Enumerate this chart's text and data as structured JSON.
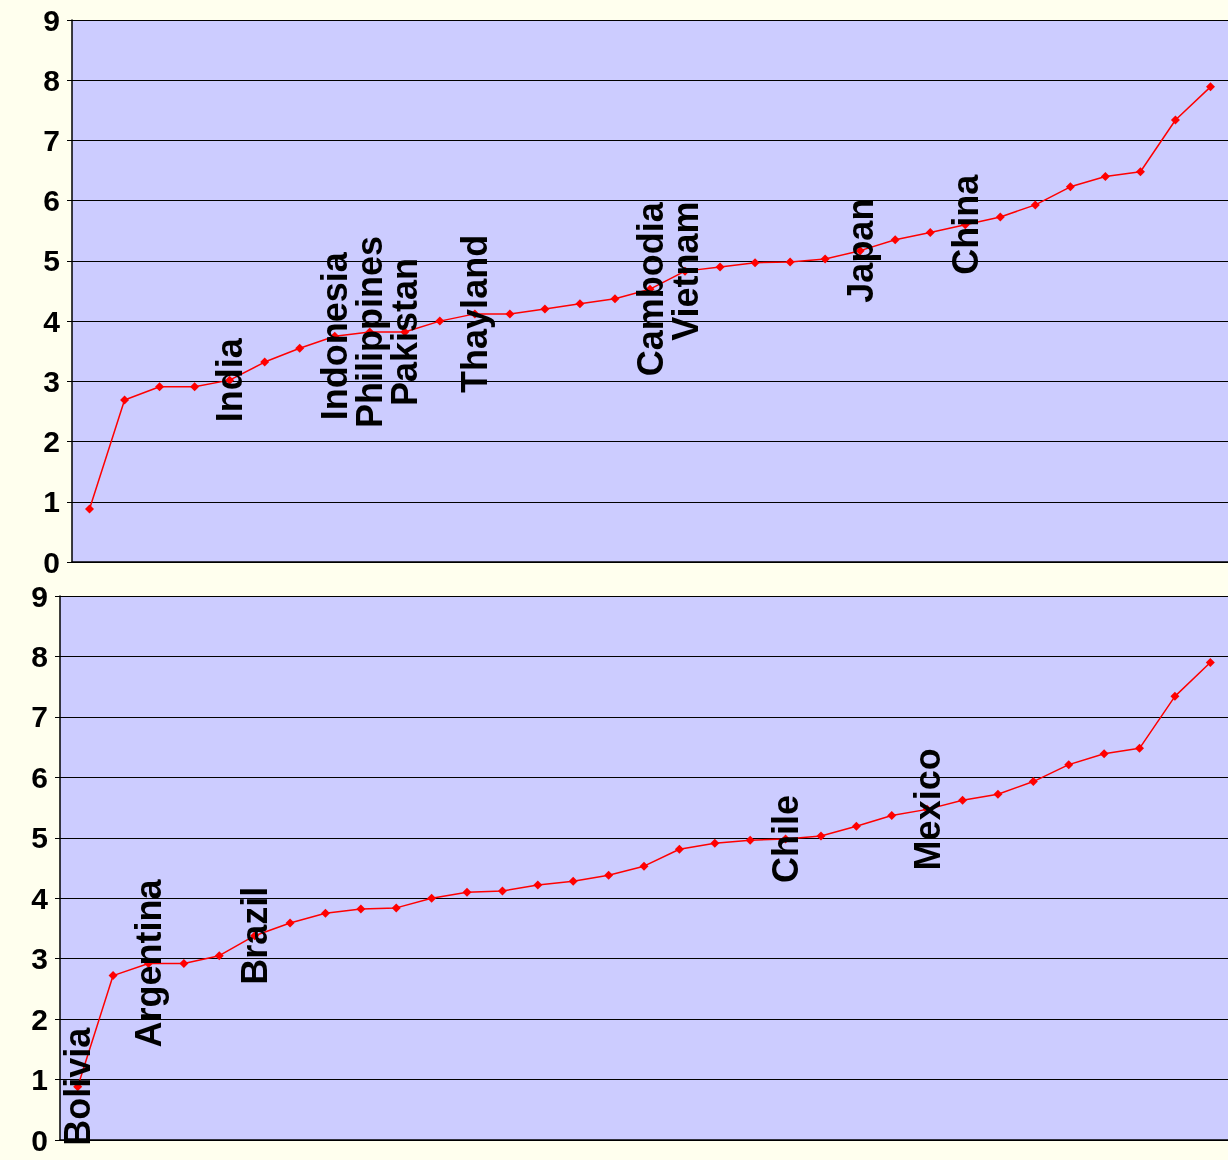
{
  "chart_data": [
    {
      "type": "line",
      "categories": [
        null,
        null,
        null,
        null,
        null,
        null,
        null,
        null,
        null,
        null,
        null,
        null,
        null,
        null,
        null,
        null,
        null,
        null,
        null,
        null,
        null,
        null,
        null,
        null,
        null,
        null,
        null,
        null,
        null,
        null,
        null,
        null,
        null
      ],
      "series": [
        {
          "color": "#ff0000",
          "values": [
            0.88,
            2.69,
            2.91,
            2.91,
            3.02,
            3.32,
            3.55,
            3.75,
            3.82,
            3.82,
            4.0,
            4.12,
            4.12,
            4.2,
            4.29,
            4.37,
            4.53,
            4.83,
            4.9,
            4.97,
            4.98,
            5.03,
            5.17,
            5.35,
            5.47,
            5.6,
            5.73,
            5.93,
            6.23,
            6.4,
            6.48,
            7.34,
            7.89
          ],
          "value_labels": [
            null,
            null,
            null,
            null,
            "India",
            null,
            null,
            "Indonesia",
            "Philippines",
            "Pakistan",
            null,
            "Thayland",
            null,
            null,
            null,
            null,
            "Cambodia",
            "Vietnam",
            null,
            null,
            null,
            null,
            "Japan",
            null,
            null,
            "China",
            null,
            null,
            null,
            null,
            null,
            null,
            null
          ]
        }
      ],
      "ylim": [
        0,
        9
      ],
      "yticks": [
        0,
        1,
        2,
        3,
        4,
        5,
        6,
        7,
        8,
        9
      ],
      "grid": "y",
      "marker": "diamond",
      "tick_labels": "y"
    },
    {
      "type": "line",
      "categories": [
        null,
        null,
        null,
        null,
        null,
        null,
        null,
        null,
        null,
        null,
        null,
        null,
        null,
        null,
        null,
        null,
        null,
        null,
        null,
        null,
        null,
        null,
        null,
        null,
        null,
        null,
        null,
        null,
        null,
        null,
        null,
        null,
        null
      ],
      "series": [
        {
          "color": "#ff0000",
          "values": [
            0.88,
            2.72,
            2.92,
            2.92,
            3.05,
            3.38,
            3.59,
            3.75,
            3.82,
            3.84,
            4.0,
            4.1,
            4.12,
            4.22,
            4.28,
            4.38,
            4.53,
            4.81,
            4.91,
            4.96,
            4.98,
            5.03,
            5.19,
            5.37,
            5.47,
            5.62,
            5.72,
            5.93,
            6.21,
            6.39,
            6.48,
            7.34,
            7.9
          ],
          "value_labels": [
            "Bolivia",
            null,
            "Argentina",
            null,
            null,
            "Brazil",
            null,
            null,
            null,
            null,
            null,
            null,
            null,
            null,
            null,
            null,
            null,
            null,
            null,
            null,
            "Chile",
            null,
            null,
            null,
            "Mexico",
            null,
            null,
            null,
            null,
            null,
            null,
            null,
            null
          ]
        }
      ],
      "ylim": [
        0,
        9
      ],
      "yticks": [
        0,
        1,
        2,
        3,
        4,
        5,
        6,
        7,
        8,
        9
      ],
      "grid": "y",
      "marker": "diamond",
      "tick_labels": "y"
    }
  ]
}
